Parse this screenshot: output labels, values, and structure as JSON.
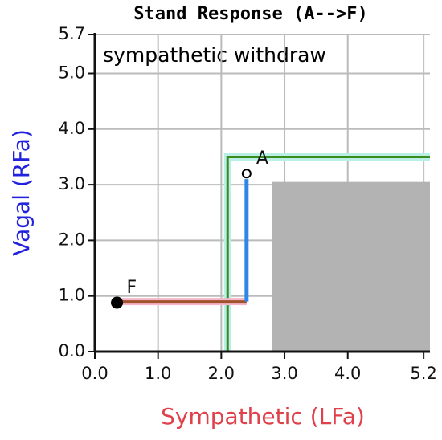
{
  "chart_data": {
    "type": "line",
    "title": "Stand Response (A-->F)",
    "annotation": "sympathetic withdraw",
    "xlabel": "Sympathetic (LFa)",
    "xlabel_color": "#e0404a",
    "ylabel": "Vagal (RFa)",
    "ylabel_color": "#2222dd",
    "xlim": [
      0,
      5.3
    ],
    "ylim": [
      0,
      5.7
    ],
    "xticks": [
      {
        "value": 0,
        "label": "0.0"
      },
      {
        "value": 1,
        "label": "1.0"
      },
      {
        "value": 2,
        "label": "2.0"
      },
      {
        "value": 3,
        "label": "3.0"
      },
      {
        "value": 4,
        "label": "4.0"
      },
      5.2
    ],
    "yticks": [
      {
        "value": 0,
        "label": "0.0"
      },
      {
        "value": 1,
        "label": "1.0"
      },
      {
        "value": 2,
        "label": "2.0"
      },
      {
        "value": 3,
        "label": "3.0"
      },
      {
        "value": 4,
        "label": "4.0"
      },
      {
        "value": 5,
        "label": "5.0"
      },
      5.7
    ],
    "grid": true,
    "region": {
      "x": [
        2.8,
        5.3
      ],
      "y": [
        0,
        3.05
      ],
      "color": "#b3b3b3"
    },
    "series": [
      {
        "color": "#3d8b1e",
        "halo": "#b8f0e8",
        "x": [
          2.1,
          2.1,
          5.3
        ],
        "values": [
          0,
          3.5,
          3.5
        ]
      },
      {
        "color": "#a0522d",
        "halo": "#f4b6c8",
        "x": [
          0.4,
          2.4
        ],
        "values": [
          0.9,
          0.9
        ]
      },
      {
        "color": "#2f86e8",
        "x": [
          2.4,
          2.4
        ],
        "values": [
          0.9,
          3.1
        ]
      }
    ],
    "points": [
      {
        "label": "A",
        "x": 2.4,
        "y": 3.2,
        "filled": false
      },
      {
        "label": "F",
        "x": 0.35,
        "y": 0.88,
        "filled": true
      }
    ]
  }
}
